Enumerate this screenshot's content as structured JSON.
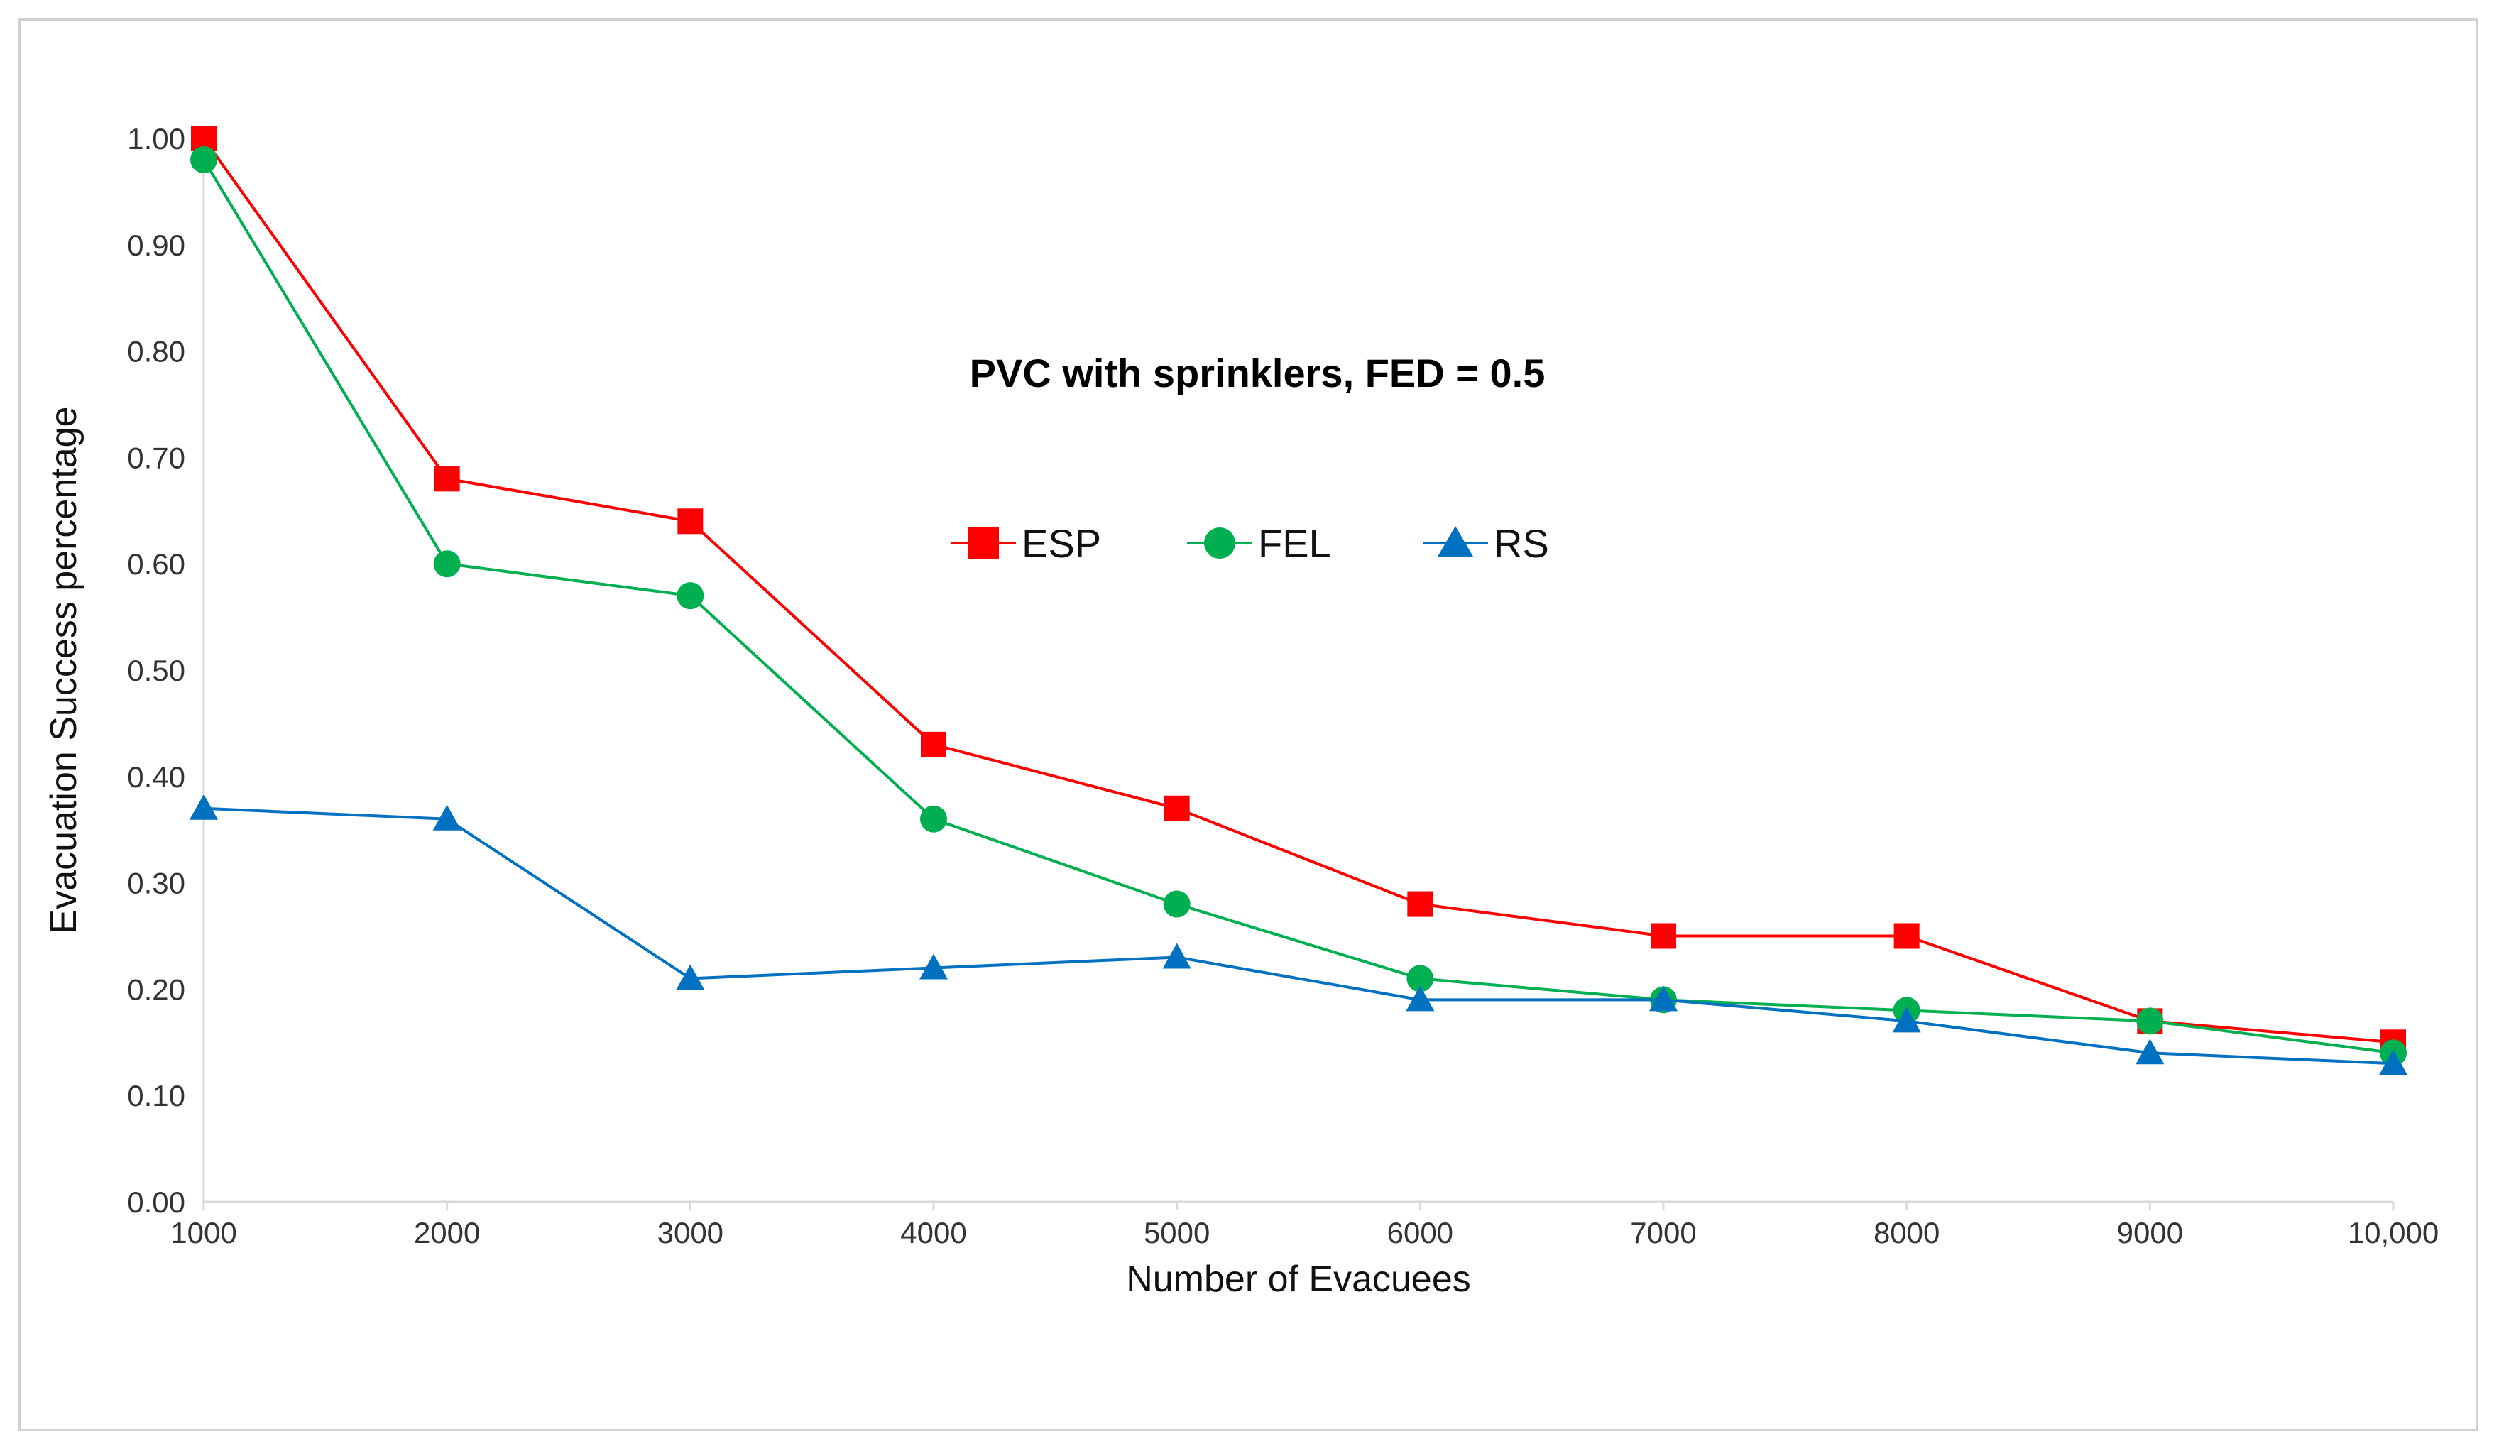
{
  "chart_data": {
    "type": "line",
    "title": "PVC with sprinklers, FED = 0.5",
    "xlabel": "Number of Evacuees",
    "ylabel": "Evacuation Success percentage",
    "categories": [
      "1000",
      "2000",
      "3000",
      "4000",
      "5000",
      "6000",
      "7000",
      "8000",
      "9000",
      "10,000"
    ],
    "y_ticks": [
      "0.00",
      "0.10",
      "0.20",
      "0.30",
      "0.40",
      "0.50",
      "0.60",
      "0.70",
      "0.80",
      "0.90",
      "1.00"
    ],
    "ylim": [
      0,
      1.0
    ],
    "grid": false,
    "legend_position": "center",
    "series": [
      {
        "name": "ESP",
        "color": "#ff0000",
        "marker": "square",
        "values": [
          1.0,
          0.68,
          0.64,
          0.43,
          0.37,
          0.28,
          0.25,
          0.25,
          0.17,
          0.15
        ]
      },
      {
        "name": "FEL",
        "color": "#00b050",
        "marker": "circle",
        "values": [
          0.98,
          0.6,
          0.57,
          0.36,
          0.28,
          0.21,
          0.19,
          0.18,
          0.17,
          0.14
        ]
      },
      {
        "name": "RS",
        "color": "#0070c0",
        "marker": "triangle",
        "values": [
          0.37,
          0.36,
          0.21,
          0.22,
          0.23,
          0.19,
          0.19,
          0.17,
          0.14,
          0.13
        ]
      }
    ]
  }
}
